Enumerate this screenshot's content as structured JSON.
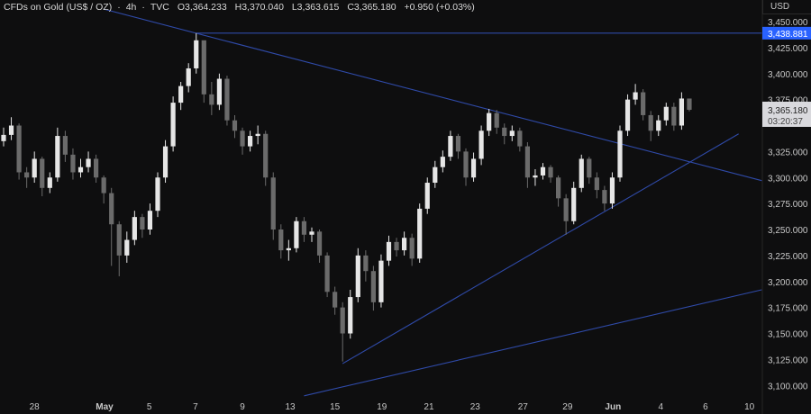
{
  "header": {
    "symbol": "CFDs on Gold (US$ / OZ)",
    "interval": "4h",
    "source": "TVC",
    "open": "O3,364.233",
    "high": "H3,370.040",
    "low": "L3,363.615",
    "close": "C3,365.180",
    "change": "+0.950 (+0.03%)"
  },
  "chart_data": {
    "type": "candlestick",
    "currency": "USD",
    "colors": {
      "background": "#0e0e0f",
      "up": "#e6e6e6",
      "down": "#6b6b6b",
      "trendline": "#2f4aa8",
      "level_label": "#2962ff"
    },
    "ylim": [
      3090,
      3460
    ],
    "y_ticks": [
      "3,450.000",
      "3,425.000",
      "3,400.000",
      "3,375.000",
      "3,325.000",
      "3,300.000",
      "3,275.000",
      "3,250.000",
      "3,225.000",
      "3,200.000",
      "3,175.000",
      "3,150.000",
      "3,125.000",
      "3,100.000"
    ],
    "y_tick_values": [
      3450,
      3425,
      3400,
      3375,
      3325,
      3300,
      3275,
      3250,
      3225,
      3200,
      3175,
      3150,
      3125,
      3100
    ],
    "x_ticks": [
      {
        "label": "28",
        "bar": 4
      },
      {
        "label": "May",
        "bar": 13.1,
        "bold": true
      },
      {
        "label": "5",
        "bar": 18.9
      },
      {
        "label": "7",
        "bar": 24.9
      },
      {
        "label": "9",
        "bar": 31
      },
      {
        "label": "13",
        "bar": 37.2
      },
      {
        "label": "15",
        "bar": 43
      },
      {
        "label": "19",
        "bar": 49.1
      },
      {
        "label": "21",
        "bar": 55.2
      },
      {
        "label": "23",
        "bar": 61.2
      },
      {
        "label": "27",
        "bar": 67.4
      },
      {
        "label": "29",
        "bar": 73.2
      },
      {
        "label": "Jun",
        "bar": 79.1,
        "bold": true
      },
      {
        "label": "4",
        "bar": 85.3
      },
      {
        "label": "6",
        "bar": 91.1
      },
      {
        "label": "10",
        "bar": 96.8
      }
    ],
    "first_open": 3335,
    "close": [
      3341,
      3350,
      3305,
      3300,
      3318,
      3290,
      3300,
      3340,
      3322,
      3305,
      3310,
      3318,
      3300,
      3285,
      3255,
      3225,
      3240,
      3262,
      3250,
      3268,
      3300,
      3330,
      3372,
      3388,
      3405,
      3432,
      3380,
      3370,
      3395,
      3355,
      3345,
      3330,
      3340,
      3342,
      3300,
      3250,
      3230,
      3232,
      3258,
      3245,
      3248,
      3225,
      3190,
      3175,
      3150,
      3185,
      3225,
      3210,
      3180,
      3220,
      3238,
      3230,
      3242,
      3222,
      3270,
      3295,
      3310,
      3320,
      3340,
      3325,
      3300,
      3318,
      3345,
      3362,
      3348,
      3340,
      3345,
      3330,
      3300,
      3302,
      3310,
      3300,
      3280,
      3258,
      3290,
      3318,
      3300,
      3288,
      3275,
      3300,
      3345,
      3375,
      3382,
      3360,
      3345,
      3355,
      3368,
      3350,
      3376,
      3365.18
    ],
    "high": [
      3348,
      3358,
      3352,
      3310,
      3325,
      3320,
      3305,
      3348,
      3345,
      3328,
      3318,
      3325,
      3322,
      3302,
      3290,
      3258,
      3248,
      3268,
      3265,
      3275,
      3305,
      3336,
      3378,
      3392,
      3410,
      3438.881,
      3430,
      3392,
      3400,
      3398,
      3360,
      3348,
      3345,
      3350,
      3345,
      3305,
      3255,
      3240,
      3262,
      3262,
      3252,
      3250,
      3228,
      3195,
      3180,
      3192,
      3232,
      3230,
      3215,
      3226,
      3244,
      3242,
      3248,
      3246,
      3275,
      3300,
      3316,
      3326,
      3345,
      3342,
      3328,
      3324,
      3350,
      3366,
      3365,
      3352,
      3350,
      3348,
      3334,
      3308,
      3314,
      3312,
      3302,
      3284,
      3296,
      3322,
      3320,
      3305,
      3292,
      3305,
      3350,
      3380,
      3390,
      3385,
      3364,
      3360,
      3372,
      3372,
      3382,
      3370.04
    ],
    "low": [
      3330,
      3336,
      3298,
      3290,
      3295,
      3282,
      3285,
      3296,
      3315,
      3298,
      3300,
      3305,
      3295,
      3275,
      3215,
      3205,
      3218,
      3235,
      3242,
      3245,
      3262,
      3295,
      3325,
      3365,
      3382,
      3400,
      3372,
      3360,
      3365,
      3350,
      3338,
      3322,
      3325,
      3332,
      3292,
      3240,
      3222,
      3220,
      3228,
      3238,
      3238,
      3218,
      3185,
      3168,
      3123,
      3145,
      3180,
      3200,
      3172,
      3175,
      3215,
      3224,
      3225,
      3215,
      3218,
      3265,
      3290,
      3305,
      3316,
      3318,
      3292,
      3296,
      3312,
      3340,
      3342,
      3332,
      3335,
      3325,
      3290,
      3292,
      3298,
      3295,
      3272,
      3245,
      3255,
      3286,
      3294,
      3280,
      3268,
      3270,
      3296,
      3340,
      3370,
      3355,
      3335,
      3340,
      3350,
      3345,
      3346,
      3363.615
    ],
    "trendlines": [
      {
        "kind": "horizontal",
        "price": 3438.881,
        "from_bar": 25,
        "to_bar": 98.4
      },
      {
        "kind": "descending",
        "from": {
          "bar": 13,
          "price": 3462
        },
        "to": {
          "bar": 98.4,
          "price": 3297
        }
      },
      {
        "kind": "ascending",
        "from": {
          "bar": 44,
          "price": 3121
        },
        "to": {
          "bar": 95.4,
          "price": 3342
        }
      },
      {
        "kind": "ascending",
        "from": {
          "bar": 39,
          "price": 3090
        },
        "to": {
          "bar": 98.4,
          "price": 3192
        }
      }
    ],
    "level_label": "3,438.881",
    "last_price_label": "3,365.180",
    "countdown": "03:20:37"
  }
}
